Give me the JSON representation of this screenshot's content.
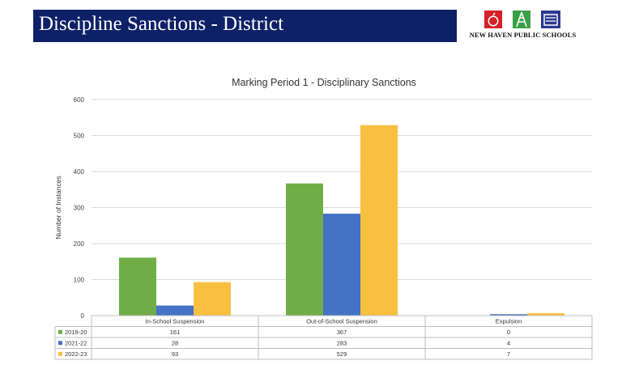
{
  "header": {
    "title": "Discipline Sanctions - District",
    "logo_text": "NEW HAVEN PUBLIC SCHOOLS"
  },
  "colors": {
    "header_bg": "#0e2167",
    "series": [
      "#70ad47",
      "#4472c4",
      "#f8c040"
    ]
  },
  "chart_data": {
    "type": "bar",
    "title": "Marking Period 1 - Disciplinary Sanctions",
    "ylabel": "Number of Instances",
    "xlabel": "",
    "categories": [
      "In-School Suspension",
      "Out-of-School Suspension",
      "Expulsion"
    ],
    "series": [
      {
        "name": "2019-20",
        "values": [
          161,
          367,
          0
        ]
      },
      {
        "name": "2021-22",
        "values": [
          28,
          283,
          4
        ]
      },
      {
        "name": "2022-23",
        "values": [
          93,
          529,
          7
        ]
      }
    ],
    "ylim": [
      0,
      600
    ],
    "yticks": [
      0,
      100,
      200,
      300,
      400,
      500,
      600
    ],
    "grid": true,
    "legend": "data-table"
  }
}
